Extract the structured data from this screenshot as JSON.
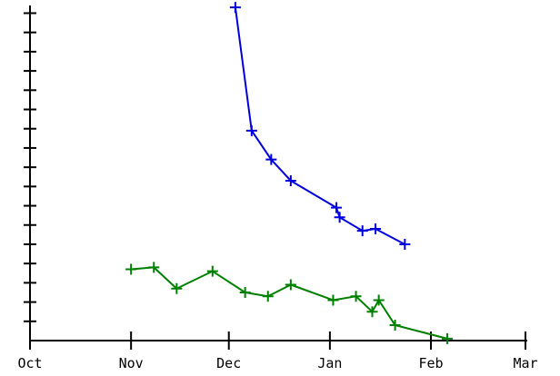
{
  "chart_data": {
    "type": "line",
    "title": "",
    "xlabel": "",
    "ylabel": "",
    "x_axis": {
      "type": "date",
      "range": [
        "2023-10-01",
        "2024-03-01"
      ],
      "ticks": [
        {
          "date": "2023-10-01",
          "label": "Oct"
        },
        {
          "date": "2023-11-01",
          "label": "Nov"
        },
        {
          "date": "2023-12-01",
          "label": "Dec"
        },
        {
          "date": "2024-01-01",
          "label": "Jan"
        },
        {
          "date": "2024-02-01",
          "label": "Feb"
        },
        {
          "date": "2024-03-01",
          "label": "Mar"
        }
      ]
    },
    "y_axis": {
      "range": [
        0,
        17.4
      ],
      "tick_interval": 1,
      "tick_labels": false
    },
    "grid": false,
    "legend": "none",
    "series": [
      {
        "color": "#0000dd",
        "marker": "plus",
        "points": [
          {
            "x": "2023-12-03",
            "y": 17.3
          },
          {
            "x": "2023-12-08",
            "y": 10.9
          },
          {
            "x": "2023-12-14",
            "y": 9.4
          },
          {
            "x": "2023-12-20",
            "y": 8.3
          },
          {
            "x": "2024-01-03",
            "y": 6.9
          },
          {
            "x": "2024-01-04",
            "y": 6.4
          },
          {
            "x": "2024-01-11",
            "y": 5.7
          },
          {
            "x": "2024-01-15",
            "y": 5.8
          },
          {
            "x": "2024-01-24",
            "y": 5.0
          }
        ]
      },
      {
        "color": "#008000",
        "marker": "plus",
        "points": [
          {
            "x": "2023-11-01",
            "y": 3.7
          },
          {
            "x": "2023-11-08",
            "y": 3.8
          },
          {
            "x": "2023-11-15",
            "y": 2.7
          },
          {
            "x": "2023-11-26",
            "y": 3.6
          },
          {
            "x": "2023-12-06",
            "y": 2.5
          },
          {
            "x": "2023-12-13",
            "y": 2.3
          },
          {
            "x": "2023-12-20",
            "y": 2.9
          },
          {
            "x": "2024-01-02",
            "y": 2.1
          },
          {
            "x": "2024-01-09",
            "y": 2.3
          },
          {
            "x": "2024-01-14",
            "y": 1.5
          },
          {
            "x": "2024-01-16",
            "y": 2.1
          },
          {
            "x": "2024-01-21",
            "y": 0.8
          },
          {
            "x": "2024-02-06",
            "y": 0.1
          }
        ]
      }
    ]
  }
}
